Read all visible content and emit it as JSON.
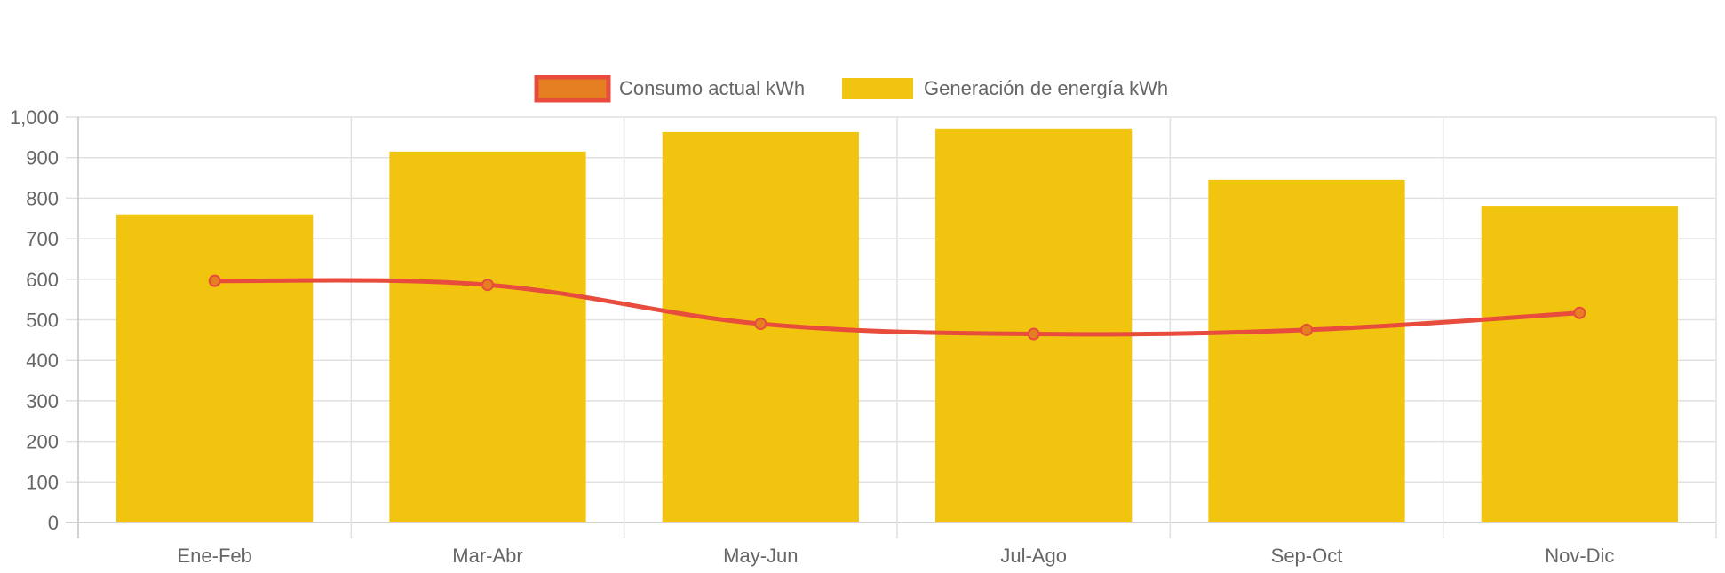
{
  "chart_data": {
    "type": "bar",
    "categories": [
      "Ene-Feb",
      "Mar-Abr",
      "May-Jun",
      "Jul-Ago",
      "Sep-Oct",
      "Nov-Dic"
    ],
    "series": [
      {
        "name": "Generación de energía kWh",
        "type": "bar",
        "color": "#f1c40f",
        "values": [
          760,
          915,
          963,
          972,
          845,
          781
        ]
      },
      {
        "name": "Consumo actual kWh",
        "type": "line",
        "color": "#e74c3c",
        "marker_fill": "#e67e22",
        "values": [
          596,
          586,
          490,
          465,
          475,
          517
        ]
      }
    ],
    "y_ticks": [
      "0",
      "100",
      "200",
      "300",
      "400",
      "500",
      "600",
      "700",
      "800",
      "900",
      "1,000"
    ],
    "ylim": [
      0,
      1000
    ],
    "grid": true,
    "legend_placement": "top-center",
    "title": "",
    "xlabel": "",
    "ylabel": ""
  }
}
